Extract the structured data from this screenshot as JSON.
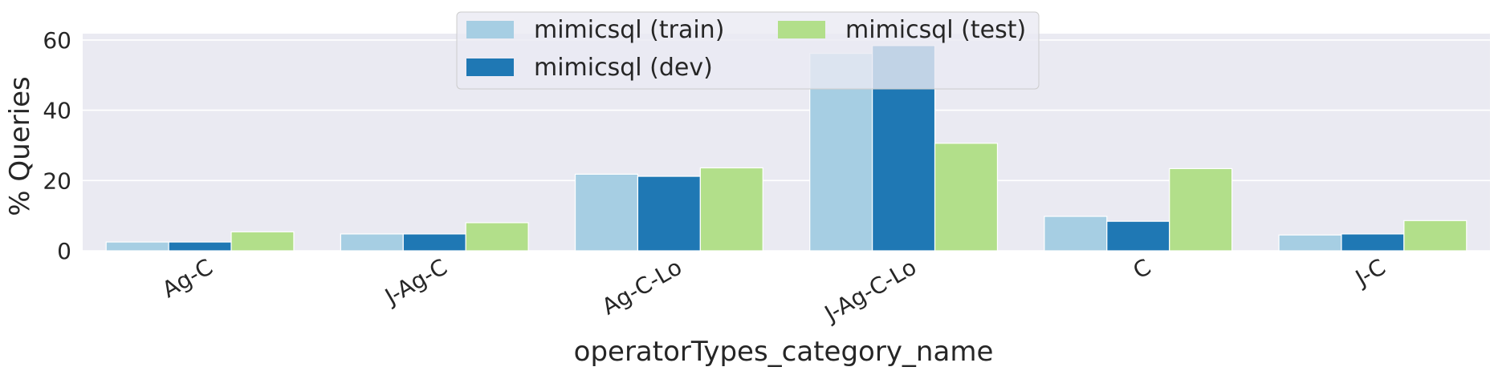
{
  "chart_data": {
    "type": "bar",
    "categories": [
      "Ag-C",
      "J-Ag-C",
      "Ag-C-Lo",
      "J-Ag-C-Lo",
      "C",
      "J-C"
    ],
    "series": [
      {
        "name": "mimicsql (train)",
        "color": "#a6cee3",
        "values": [
          2.5,
          4.8,
          21.8,
          56.2,
          9.8,
          4.5
        ]
      },
      {
        "name": "mimicsql (dev)",
        "color": "#1f78b4",
        "values": [
          2.5,
          4.8,
          21.2,
          58.4,
          8.4,
          4.8
        ]
      },
      {
        "name": "mimicsql (test)",
        "color": "#b2df8a",
        "values": [
          5.4,
          8.0,
          23.6,
          30.6,
          23.4,
          8.6
        ]
      }
    ],
    "xlabel": "operatorTypes_category_name",
    "ylabel": "% Queries",
    "ylim": [
      0,
      60
    ],
    "yticks": [
      0,
      20,
      40,
      60
    ],
    "grid": true,
    "legend_position": "top-center",
    "legend_columns": 2,
    "background_color": "#eaeaf2"
  }
}
